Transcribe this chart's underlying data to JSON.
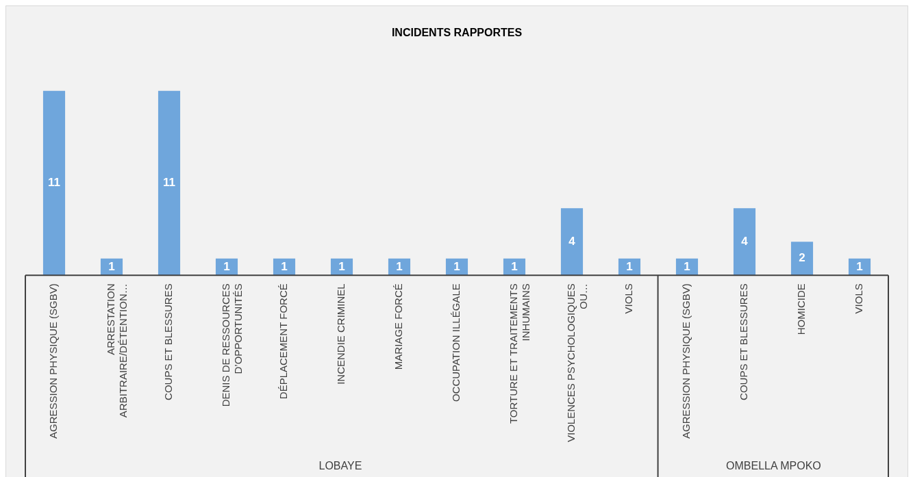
{
  "chart_data": {
    "type": "bar",
    "title": "INCIDENTS RAPPORTES",
    "categories": [
      "AGRESSION PHYSIQUE (SGBV)",
      "ARRESTATION ARBITRAIRE/DÉTENTION…",
      "COUPS ET BLESSURES",
      "DENIS DE RESSOURCES D’OPPORTUNITÉS",
      "DÉPLACEMENT FORCÉ",
      "INCENDIE CRIMINEL",
      "MARIAGE FORCÉ",
      "OCCUPATION ILLÉGALE",
      "TORTURE ET TRAITEMENTS INHUMAINS",
      "VIOLENCES PSYCHOLOGIQUES OU…",
      "VIOLS",
      "AGRESSION PHYSIQUE (SGBV)",
      "COUPS ET BLESSURES",
      "HOMICIDE",
      "VIOLS"
    ],
    "values": [
      11,
      1,
      11,
      1,
      1,
      1,
      1,
      1,
      1,
      4,
      1,
      1,
      4,
      2,
      1
    ],
    "color": "#6fa6dc",
    "data_labels": true,
    "grid": false,
    "legend": false,
    "annotations": [
      "LOBAYE",
      "OMBELLA MPOKO"
    ]
  }
}
